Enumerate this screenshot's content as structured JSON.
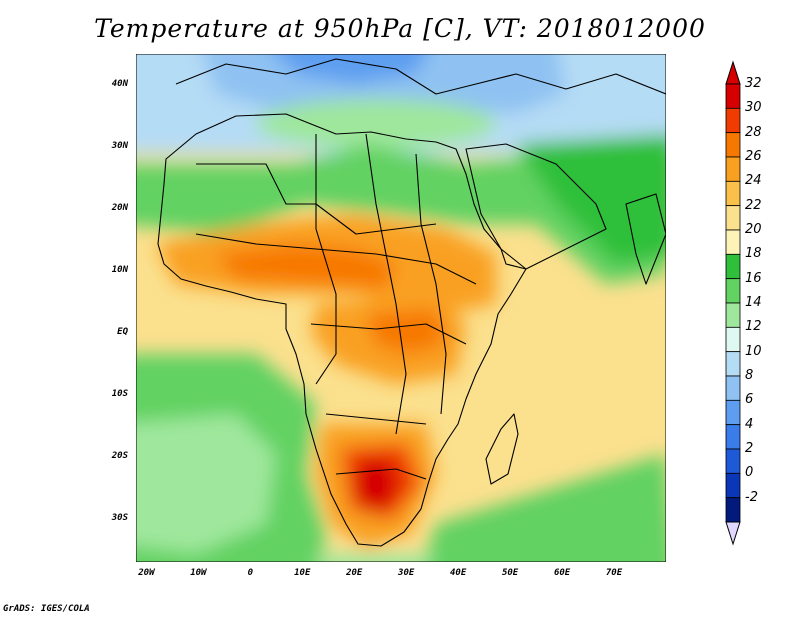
{
  "title": "Temperature at 950hPa [C], VT: 2018012000",
  "credit": "GrADS: IGES/COLA",
  "map": {
    "lat_labels": [
      "40N",
      "30N",
      "20N",
      "10N",
      "EQ",
      "10S",
      "20S",
      "30S"
    ],
    "lon_labels": [
      "20W",
      "10W",
      "0",
      "10E",
      "20E",
      "30E",
      "40E",
      "50E",
      "60E",
      "70E"
    ],
    "lat_range": [
      -37,
      45
    ],
    "lon_range": [
      -22,
      80
    ]
  },
  "colorbar": {
    "labels": [
      "32",
      "30",
      "28",
      "26",
      "24",
      "22",
      "20",
      "18",
      "16",
      "14",
      "12",
      "10",
      "8",
      "6",
      "4",
      "2",
      "0",
      "-2"
    ],
    "colors": [
      "#d60000",
      "#f03c00",
      "#f77800",
      "#f9a020",
      "#f9c04a",
      "#fbe08e",
      "#fdf2b8",
      "#2fbf3a",
      "#62d262",
      "#9fe79c",
      "#dff9f2",
      "#b5dcf5",
      "#8fc2f2",
      "#5d9ef0",
      "#3a7cea",
      "#1e5ad8",
      "#0a36b8",
      "#021a7c"
    ],
    "top_arrow_color": "#d60000",
    "bottom_arrow_color": "#e0d8ff"
  }
}
